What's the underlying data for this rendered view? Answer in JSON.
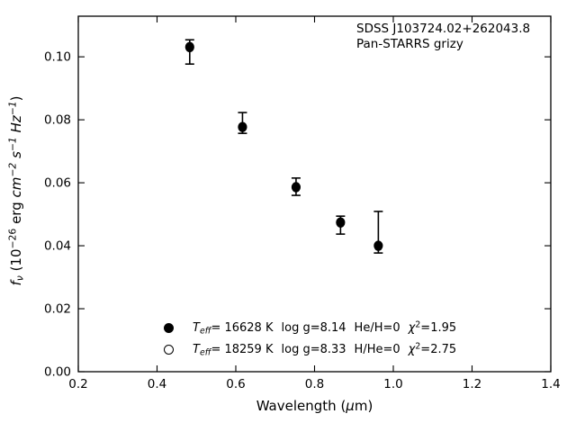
{
  "annotation": {
    "line1": "SDSS J103724.02+262043.8",
    "line2": "Pan-STARRS grizy"
  },
  "axes": {
    "xlabel": {
      "pre": "Wavelength (",
      "mu": "μ",
      "post": "m)"
    },
    "ylabel": {
      "f": "f",
      "nu": "ν",
      "open": " (10",
      "exp10": "−26",
      "erg": " erg ",
      "cm": "cm",
      "expcm": "−2",
      "s": " s",
      "exps": "−1",
      "hz": " Hz",
      "exphz": "−1",
      "close": ")"
    }
  },
  "legend": {
    "rows": [
      {
        "marker": "filled-circle",
        "t": "T",
        "t_sub": "eff",
        "teff_val": "= 16628 K",
        "logg": "log g=8.14",
        "comp": "He/H=0",
        "chi": "χ",
        "chi_sup": "2",
        "chi_val": "=1.95"
      },
      {
        "marker": "open-circle",
        "t": "T",
        "t_sub": "eff",
        "teff_val": "= 18259 K",
        "logg": "log g=8.33",
        "comp": "H/He=0",
        "chi": "χ",
        "chi_sup": "2",
        "chi_val": "=2.75"
      }
    ]
  },
  "chart_data": {
    "type": "scatter",
    "title": "SDSS J103724.02+262043.8 Pan-STARRS grizy",
    "xlabel": "Wavelength (μm)",
    "ylabel": "f_ν (10^−26 erg cm^−2 s^−1 Hz^−1)",
    "xlim": [
      0.2,
      1.4
    ],
    "ylim": [
      0.0,
      0.1129
    ],
    "xticks": [
      0.2,
      0.4,
      0.6,
      0.8,
      1.0,
      1.2,
      1.4
    ],
    "xtick_labels": [
      "0.2",
      "0.4",
      "0.6",
      "0.8",
      "1.0",
      "1.2",
      "1.4"
    ],
    "yticks": [
      0.0,
      0.02,
      0.04,
      0.06,
      0.08,
      0.1
    ],
    "ytick_labels": [
      "0.00",
      "0.02",
      "0.04",
      "0.06",
      "0.08",
      "0.10"
    ],
    "grid": false,
    "tick_direction": "in",
    "legend_position": "lower center-left inside",
    "series": [
      {
        "name": "Teff= 16628 K  log g=8.14  He/H=0  chi2=1.95",
        "marker": "filled-circle",
        "color": "#000000",
        "points": [
          {
            "x": 0.483,
            "y": 0.1031,
            "err_up": 0.0023,
            "err_down": 0.0054
          },
          {
            "x": 0.617,
            "y": 0.0777,
            "err_up": 0.0046,
            "err_down": 0.002
          },
          {
            "x": 0.753,
            "y": 0.0586,
            "err_up": 0.0029,
            "err_down": 0.0026
          },
          {
            "x": 0.866,
            "y": 0.0474,
            "err_up": 0.002,
            "err_down": 0.0037
          },
          {
            "x": 0.962,
            "y": 0.04,
            "err_up": 0.0109,
            "err_down": 0.0023
          }
        ]
      },
      {
        "name": "Teff= 18259 K  log g=8.33  H/He=0  chi2=2.75",
        "marker": "open-circle",
        "color": "#000000",
        "points": []
      }
    ]
  }
}
